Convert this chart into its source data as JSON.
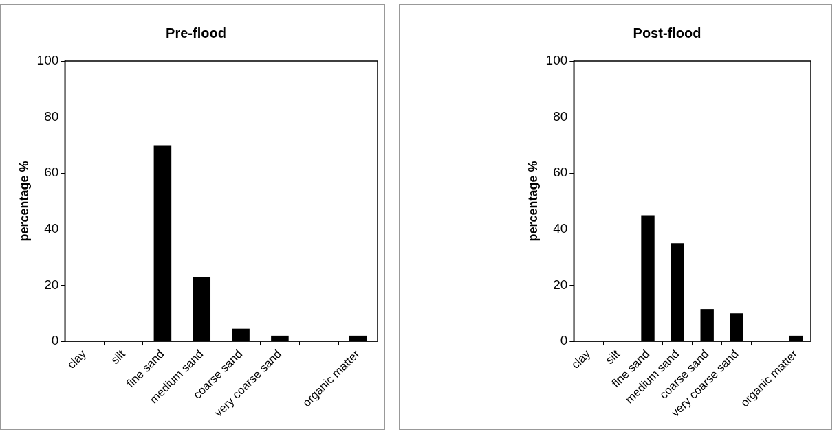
{
  "chart_data": [
    {
      "type": "bar",
      "title": "Pre-flood",
      "ylabel": "percentage %",
      "categories": [
        "clay",
        "silt",
        "fine sand",
        "medium sand",
        "coarse sand",
        "very coarse sand",
        null,
        "organic matter"
      ],
      "values": [
        0,
        0,
        70,
        23,
        4.5,
        2,
        0,
        2
      ],
      "color": "#000000",
      "ylim": [
        0,
        100
      ],
      "yticks": [
        0,
        20,
        40,
        60,
        80,
        100
      ],
      "grid": false,
      "legend": false
    },
    {
      "type": "bar",
      "title": "Post-flood",
      "ylabel": "percentage %",
      "categories": [
        "clay",
        "silt",
        "fine sand",
        "medium sand",
        "coarse sand",
        "very coarse sand",
        null,
        "organic matter"
      ],
      "values": [
        0,
        0,
        45,
        35,
        11.5,
        10,
        0,
        2
      ],
      "color": "#000000",
      "ylim": [
        0,
        100
      ],
      "yticks": [
        0,
        20,
        40,
        60,
        80,
        100
      ],
      "grid": false,
      "legend": false
    }
  ]
}
